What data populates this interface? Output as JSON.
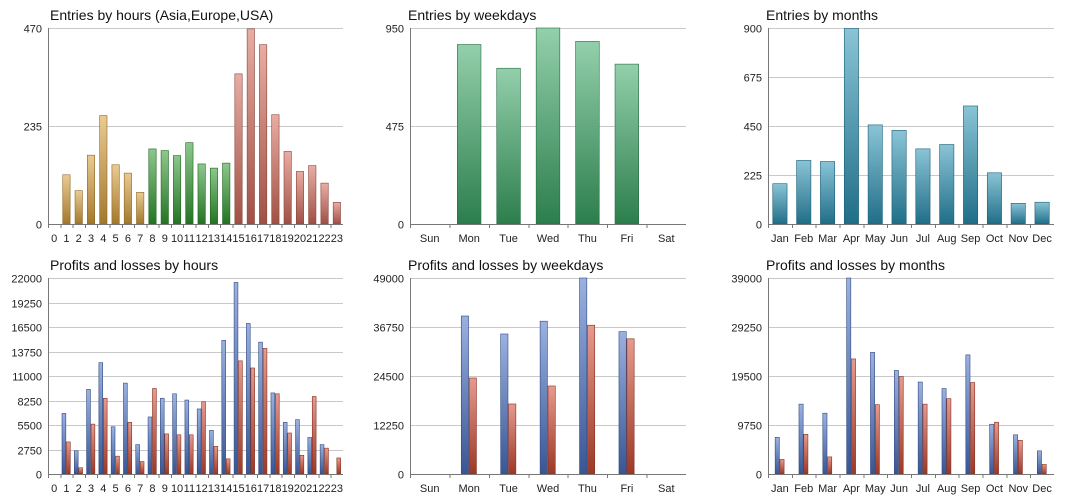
{
  "chart_data": [
    {
      "id": "entries-hours",
      "type": "bar",
      "title": "Entries by hours (Asia,Europe,USA)",
      "ylim": [
        0,
        470
      ],
      "yticks": [
        0,
        235,
        470
      ],
      "categories": [
        "0",
        "1",
        "2",
        "3",
        "4",
        "5",
        "6",
        "7",
        "8",
        "9",
        "10",
        "11",
        "12",
        "13",
        "14",
        "15",
        "16",
        "17",
        "18",
        "19",
        "20",
        "21",
        "22",
        "23"
      ],
      "series": [
        {
          "values": [
            0,
            118,
            80,
            165,
            260,
            142,
            122,
            76,
            180,
            176,
            164,
            195,
            144,
            134,
            146,
            360,
            468,
            430,
            262,
            174,
            126,
            140,
            98,
            52
          ]
        }
      ],
      "bar_colors": [
        "#d9a03a",
        "#d9a03a",
        "#d9a03a",
        "#d9a03a",
        "#d9a03a",
        "#d9a03a",
        "#d9a03a",
        "#d9a03a",
        "#2f9a2f",
        "#2f9a2f",
        "#2f9a2f",
        "#2f9a2f",
        "#2f9a2f",
        "#2f9a2f",
        "#2f9a2f",
        "#d56a5a",
        "#d56a5a",
        "#d56a5a",
        "#d56a5a",
        "#d56a5a",
        "#d56a5a",
        "#d56a5a",
        "#d56a5a",
        "#d56a5a"
      ]
    },
    {
      "id": "entries-weekdays",
      "type": "bar",
      "title": "Entries by weekdays",
      "ylim": [
        0,
        950
      ],
      "yticks": [
        0,
        475,
        950
      ],
      "categories": [
        "Sun",
        "Mon",
        "Tue",
        "Wed",
        "Thu",
        "Fri",
        "Sat"
      ],
      "series": [
        {
          "values": [
            0,
            870,
            755,
            950,
            885,
            775,
            0
          ]
        }
      ],
      "bar_colors": [
        "#3aa866"
      ]
    },
    {
      "id": "entries-months",
      "type": "bar",
      "title": "Entries by months",
      "ylim": [
        0,
        900
      ],
      "yticks": [
        0,
        225,
        450,
        675,
        900
      ],
      "categories": [
        "Jan",
        "Feb",
        "Mar",
        "Apr",
        "May",
        "Jun",
        "Jul",
        "Aug",
        "Sep",
        "Oct",
        "Nov",
        "Dec"
      ],
      "series": [
        {
          "values": [
            185,
            292,
            287,
            898,
            455,
            430,
            345,
            365,
            542,
            235,
            95,
            100
          ]
        }
      ],
      "bar_colors": [
        "#2a93b5"
      ]
    },
    {
      "id": "pl-hours",
      "type": "bar",
      "title": "Profits and losses by hours",
      "ylim": [
        0,
        22000
      ],
      "yticks": [
        0,
        2750,
        5500,
        8250,
        11000,
        13750,
        16500,
        19250,
        22000
      ],
      "categories": [
        "0",
        "1",
        "2",
        "3",
        "4",
        "5",
        "6",
        "7",
        "8",
        "9",
        "10",
        "11",
        "12",
        "13",
        "14",
        "15",
        "16",
        "17",
        "18",
        "19",
        "20",
        "21",
        "22",
        "23"
      ],
      "series": [
        {
          "values": [
            0,
            6800,
            2600,
            9500,
            12500,
            5300,
            10200,
            3300,
            6400,
            8500,
            9000,
            8300,
            7300,
            4900,
            15000,
            21500,
            16900,
            14800,
            9100,
            5800,
            6100,
            4100,
            3300,
            0
          ]
        },
        {
          "values": [
            0,
            3600,
            700,
            5600,
            8500,
            2000,
            5800,
            1400,
            9600,
            4500,
            4400,
            4400,
            8100,
            3100,
            1700,
            12700,
            11900,
            14100,
            9000,
            4600,
            2100,
            8700,
            2900,
            1800
          ]
        }
      ],
      "series_colors": [
        "#4a72c6",
        "#d04a32"
      ]
    },
    {
      "id": "pl-weekdays",
      "type": "bar",
      "title": "Profits and losses by weekdays",
      "ylim": [
        0,
        49000
      ],
      "yticks": [
        0,
        12250,
        24500,
        36750,
        49000
      ],
      "categories": [
        "Sun",
        "Mon",
        "Tue",
        "Wed",
        "Thu",
        "Fri",
        "Sat"
      ],
      "series": [
        {
          "values": [
            0,
            39500,
            35000,
            38200,
            49000,
            35600,
            0
          ]
        },
        {
          "values": [
            0,
            24000,
            17500,
            22000,
            37200,
            33800,
            0
          ]
        }
      ],
      "series_colors": [
        "#4a72c6",
        "#d04a32"
      ]
    },
    {
      "id": "pl-months",
      "type": "bar",
      "title": "Profits and losses by months",
      "ylim": [
        0,
        39000
      ],
      "yticks": [
        0,
        9750,
        19500,
        29250,
        39000
      ],
      "categories": [
        "Jan",
        "Feb",
        "Mar",
        "Apr",
        "May",
        "Jun",
        "Jul",
        "Aug",
        "Sep",
        "Oct",
        "Nov",
        "Dec"
      ],
      "series": [
        {
          "values": [
            7300,
            13900,
            12100,
            39000,
            24200,
            20600,
            18300,
            17000,
            23700,
            9900,
            7800,
            4600
          ]
        },
        {
          "values": [
            2900,
            7900,
            3400,
            22900,
            13800,
            19400,
            13900,
            15000,
            18200,
            10300,
            6700,
            1900
          ]
        }
      ],
      "series_colors": [
        "#4a72c6",
        "#d04a32"
      ]
    }
  ]
}
